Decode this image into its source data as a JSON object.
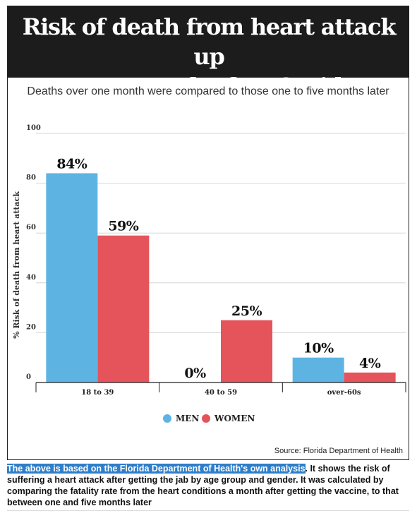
{
  "title_line1": "Risk of death from heart attack up",
  "title_line2": "to a month after Covid vaccination",
  "subtitle": "Deaths over one month were compared to those one to five months later",
  "source": "Source: Florida Department of Health",
  "caption": {
    "highlight": "The above is based on the Florida Department of Health's own analysis",
    "rest": ". It shows the risk of suffering a heart attack after getting the jab by age group and gender. It was calculated by comparing the fatality rate from the heart conditions a month after getting the vaccine, to that between one and five months later"
  },
  "colors": {
    "men": "#5db4e3",
    "women": "#e5545a",
    "title_bg": "#1c1c1c",
    "highlight": "#2f7ec9"
  },
  "chart_data": {
    "type": "bar",
    "title": "Risk of death from heart attack up to a month after Covid vaccination",
    "subtitle": "Deaths over one month were compared to those one to five months later",
    "ylabel": "% Risk of death from heart attack",
    "xlabel": "",
    "ylim": [
      0,
      100
    ],
    "yticks": [
      0,
      20,
      40,
      60,
      80,
      100
    ],
    "categories": [
      "18 to 39",
      "40 to 59",
      "over-60s"
    ],
    "series": [
      {
        "name": "MEN",
        "values": [
          84,
          0,
          10
        ],
        "labels": [
          "84%",
          "0%",
          "10%"
        ],
        "color": "#5db4e3"
      },
      {
        "name": "WOMEN",
        "values": [
          59,
          25,
          4
        ],
        "labels": [
          "59%",
          "25%",
          "4%"
        ],
        "color": "#e5545a"
      }
    ],
    "grid": true,
    "legend": "bottom-center"
  }
}
